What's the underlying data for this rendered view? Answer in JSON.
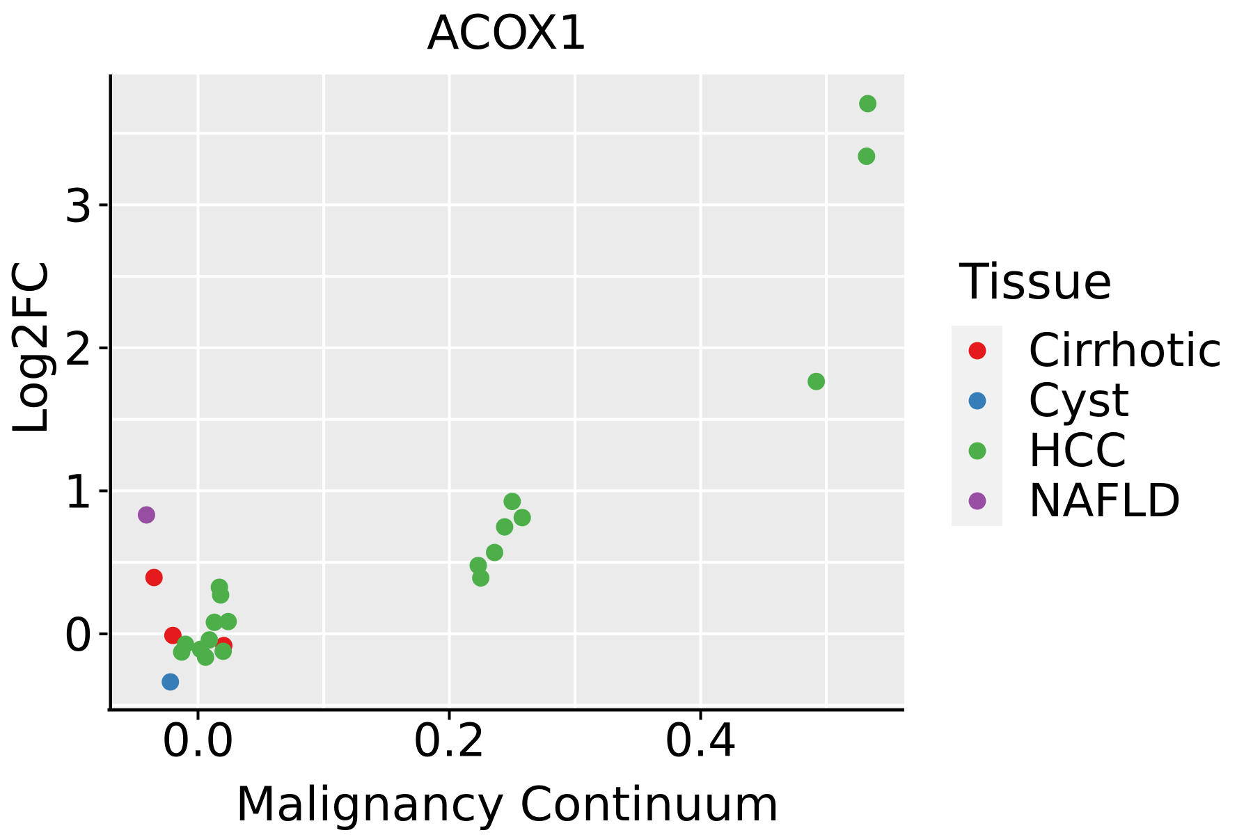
{
  "title": "ACOX1",
  "legend": {
    "title": "Tissue",
    "items": [
      {
        "label": "Cirrhotic",
        "color": "#E41A1C"
      },
      {
        "label": "Cyst",
        "color": "#377EB8"
      },
      {
        "label": "HCC",
        "color": "#4DAF4A"
      },
      {
        "label": "NAFLD",
        "color": "#984EA3"
      }
    ]
  },
  "colors": {
    "panel_background": "#EBEBEB",
    "grid": "#FFFFFF",
    "axis": "#000000",
    "legend_key_background": "#F1F1F1",
    "cirrhotic": "#E41A1C",
    "cyst": "#377EB8",
    "hcc": "#4DAF4A",
    "nafld": "#984EA3"
  },
  "chart_data": {
    "type": "scatter",
    "title": "ACOX1",
    "xlabel": "Malignancy Continuum",
    "ylabel": "Log2FC",
    "xlim": [
      -0.0695,
      0.562
    ],
    "ylim": [
      -0.521,
      3.912
    ],
    "grid": true,
    "grid_x": [
      0.0,
      0.1,
      0.2,
      0.3,
      0.4,
      0.5
    ],
    "grid_y": [
      -0.5,
      0.0,
      0.5,
      1.0,
      1.5,
      2.0,
      2.5,
      3.0,
      3.5
    ],
    "x_ticks": {
      "values": [
        0.0,
        0.2,
        0.4
      ],
      "labels": [
        "0.0",
        "0.2",
        "0.4"
      ]
    },
    "y_ticks": {
      "values": [
        0,
        1,
        2,
        3
      ],
      "labels": [
        "0",
        "1",
        "2",
        "3"
      ]
    },
    "legend_title": "Tissue",
    "legend_position": "right",
    "series": [
      {
        "name": "Cirrhotic",
        "color": "#E41A1C",
        "points": [
          [
            -0.035,
            0.394
          ],
          [
            -0.02,
            -0.011
          ],
          [
            0.0205,
            -0.082
          ]
        ]
      },
      {
        "name": "Cyst",
        "color": "#377EB8",
        "points": [
          [
            -0.022,
            -0.336
          ]
        ]
      },
      {
        "name": "HCC",
        "color": "#4DAF4A",
        "points": [
          [
            0.533,
            3.708
          ],
          [
            0.532,
            3.34
          ],
          [
            0.492,
            1.765
          ],
          [
            0.25,
            0.926
          ],
          [
            0.258,
            0.813
          ],
          [
            0.244,
            0.748
          ],
          [
            0.236,
            0.569
          ],
          [
            0.223,
            0.478
          ],
          [
            0.225,
            0.391
          ],
          [
            0.017,
            0.326
          ],
          [
            0.018,
            0.272
          ],
          [
            0.013,
            0.081
          ],
          [
            0.024,
            0.086
          ],
          [
            -0.01,
            -0.073
          ],
          [
            -0.013,
            -0.127
          ],
          [
            0.009,
            -0.042
          ],
          [
            0.002,
            -0.108
          ],
          [
            0.006,
            -0.163
          ],
          [
            0.02,
            -0.122
          ]
        ]
      },
      {
        "name": "NAFLD",
        "color": "#984EA3",
        "points": [
          [
            -0.041,
            0.832
          ]
        ]
      }
    ]
  }
}
